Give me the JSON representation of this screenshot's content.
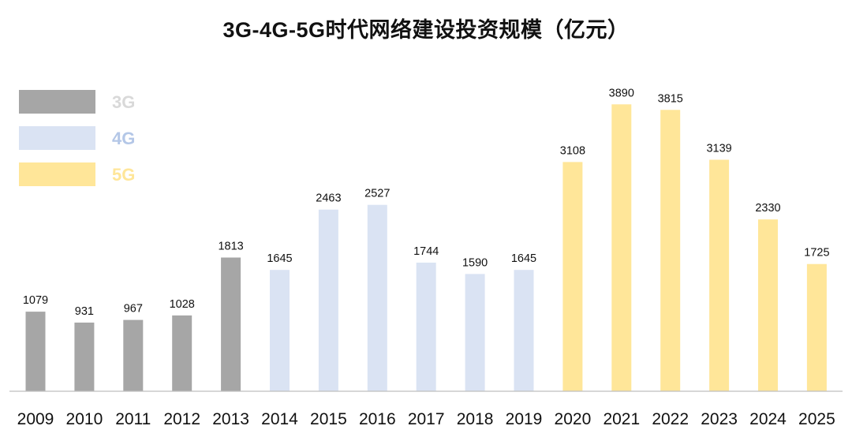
{
  "chart_data": {
    "type": "bar",
    "title": "3G-4G-5G时代网络建设投资规模（亿元）",
    "xlabel": "",
    "ylabel": "",
    "ylim": [
      0,
      4200
    ],
    "grid": false,
    "legend_position": "top-left",
    "categories": [
      "2009",
      "2010",
      "2011",
      "2012",
      "2013",
      "2014",
      "2015",
      "2016",
      "2017",
      "2018",
      "2019",
      "2020",
      "2021",
      "2022",
      "2023",
      "2024",
      "2025"
    ],
    "series": [
      {
        "name": "3G",
        "color": "#a6a6a6",
        "label_color": "#d9d9d9",
        "values": [
          1079,
          931,
          967,
          1028,
          1813,
          null,
          null,
          null,
          null,
          null,
          null,
          null,
          null,
          null,
          null,
          null,
          null
        ]
      },
      {
        "name": "4G",
        "color": "#dae3f3",
        "label_color": "#b4c7e7",
        "values": [
          null,
          null,
          null,
          null,
          null,
          1645,
          2463,
          2527,
          1744,
          1590,
          1645,
          null,
          null,
          null,
          null,
          null,
          null
        ]
      },
      {
        "name": "5G",
        "color": "#ffe699",
        "label_color": "#ffe699",
        "values": [
          null,
          null,
          null,
          null,
          null,
          null,
          null,
          null,
          null,
          null,
          null,
          3108,
          3890,
          3815,
          3139,
          2330,
          1725
        ]
      }
    ],
    "data_labels": [
      "1079",
      "931",
      "967",
      "1028",
      "1813",
      "1645",
      "2463",
      "2527",
      "1744",
      "1590",
      "1645",
      "3108",
      "3890",
      "3815",
      "3139",
      "2330",
      "1725"
    ]
  }
}
